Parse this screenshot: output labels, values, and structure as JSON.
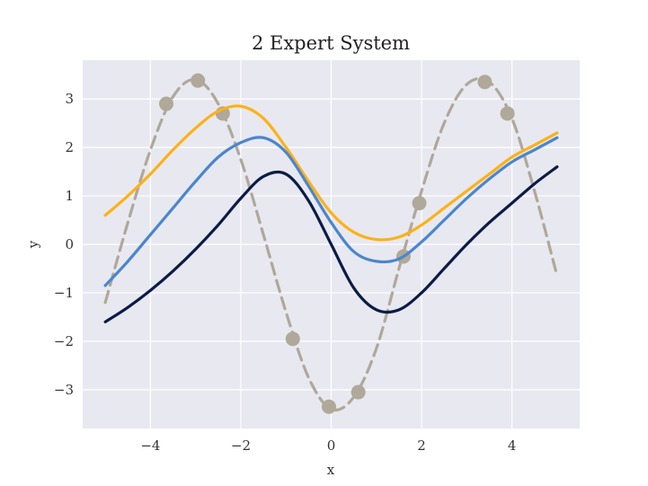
{
  "chart_data": {
    "type": "line",
    "title": "2 Expert System",
    "xlabel": "x",
    "ylabel": "y",
    "xlim": [
      -5.5,
      5.5
    ],
    "ylim": [
      -3.8,
      3.8
    ],
    "x_ticks": [
      -4,
      -2,
      0,
      2,
      4
    ],
    "x_tick_labels": [
      "−4",
      "−2",
      "0",
      "2",
      "4"
    ],
    "y_ticks": [
      -3,
      -2,
      -1,
      0,
      1,
      2,
      3
    ],
    "y_tick_labels": [
      "−3",
      "−2",
      "−1",
      "0",
      "1",
      "2",
      "3"
    ],
    "grid": true,
    "background": "#e8e8f1",
    "series": [
      {
        "color": "#b0a898",
        "style": "dashed",
        "x": [
          -5.0,
          -4.5,
          -4.0,
          -3.5,
          -3.0,
          -2.5,
          -2.0,
          -1.5,
          -1.0,
          -0.5,
          0.0,
          0.5,
          1.0,
          1.5,
          2.0,
          2.5,
          3.0,
          3.5,
          4.0,
          4.5,
          5.0
        ],
        "y": [
          -1.2,
          0.45,
          1.95,
          3.05,
          3.4,
          2.9,
          1.75,
          0.2,
          -1.4,
          -2.75,
          -3.4,
          -3.15,
          -2.15,
          -0.5,
          1.1,
          2.5,
          3.3,
          3.35,
          2.6,
          1.1,
          -0.65
        ]
      },
      {
        "color": "#b0a898",
        "style": "markers",
        "x": [
          -3.65,
          -2.95,
          -2.4,
          -0.85,
          -0.05,
          0.6,
          1.6,
          1.95,
          3.4,
          3.9
        ],
        "y": [
          2.9,
          3.38,
          2.7,
          -1.95,
          -3.35,
          -3.05,
          -0.25,
          0.85,
          3.35,
          2.7
        ]
      },
      {
        "color": "#fbb217",
        "style": "solid",
        "x": [
          -5.0,
          -4.5,
          -4.0,
          -3.5,
          -3.0,
          -2.5,
          -2.0,
          -1.5,
          -1.0,
          -0.5,
          0.0,
          0.5,
          1.0,
          1.5,
          2.0,
          2.5,
          3.0,
          3.5,
          4.0,
          4.5,
          5.0
        ],
        "y": [
          0.6,
          1.0,
          1.45,
          1.95,
          2.4,
          2.75,
          2.85,
          2.6,
          2.0,
          1.3,
          0.65,
          0.25,
          0.1,
          0.15,
          0.4,
          0.75,
          1.1,
          1.45,
          1.8,
          2.05,
          2.3
        ]
      },
      {
        "color": "#4a86cc",
        "style": "solid",
        "x": [
          -5.0,
          -4.5,
          -4.0,
          -3.5,
          -3.0,
          -2.5,
          -2.0,
          -1.5,
          -1.0,
          -0.5,
          0.0,
          0.5,
          1.0,
          1.5,
          2.0,
          2.5,
          3.0,
          3.5,
          4.0,
          4.5,
          5.0
        ],
        "y": [
          -0.85,
          -0.35,
          0.2,
          0.75,
          1.3,
          1.8,
          2.1,
          2.2,
          1.9,
          1.2,
          0.45,
          -0.15,
          -0.35,
          -0.3,
          0.05,
          0.5,
          0.95,
          1.35,
          1.7,
          1.95,
          2.2
        ]
      },
      {
        "color": "#0b1c45",
        "style": "solid",
        "x": [
          -5.0,
          -4.5,
          -4.0,
          -3.5,
          -3.0,
          -2.5,
          -2.0,
          -1.5,
          -1.0,
          -0.5,
          0.0,
          0.5,
          1.0,
          1.5,
          2.0,
          2.5,
          3.0,
          3.5,
          4.0,
          4.5,
          5.0
        ],
        "y": [
          -1.6,
          -1.3,
          -0.95,
          -0.55,
          -0.1,
          0.4,
          0.95,
          1.4,
          1.45,
          0.9,
          0.0,
          -0.9,
          -1.35,
          -1.35,
          -1.0,
          -0.5,
          0.0,
          0.45,
          0.85,
          1.25,
          1.6
        ]
      }
    ]
  }
}
